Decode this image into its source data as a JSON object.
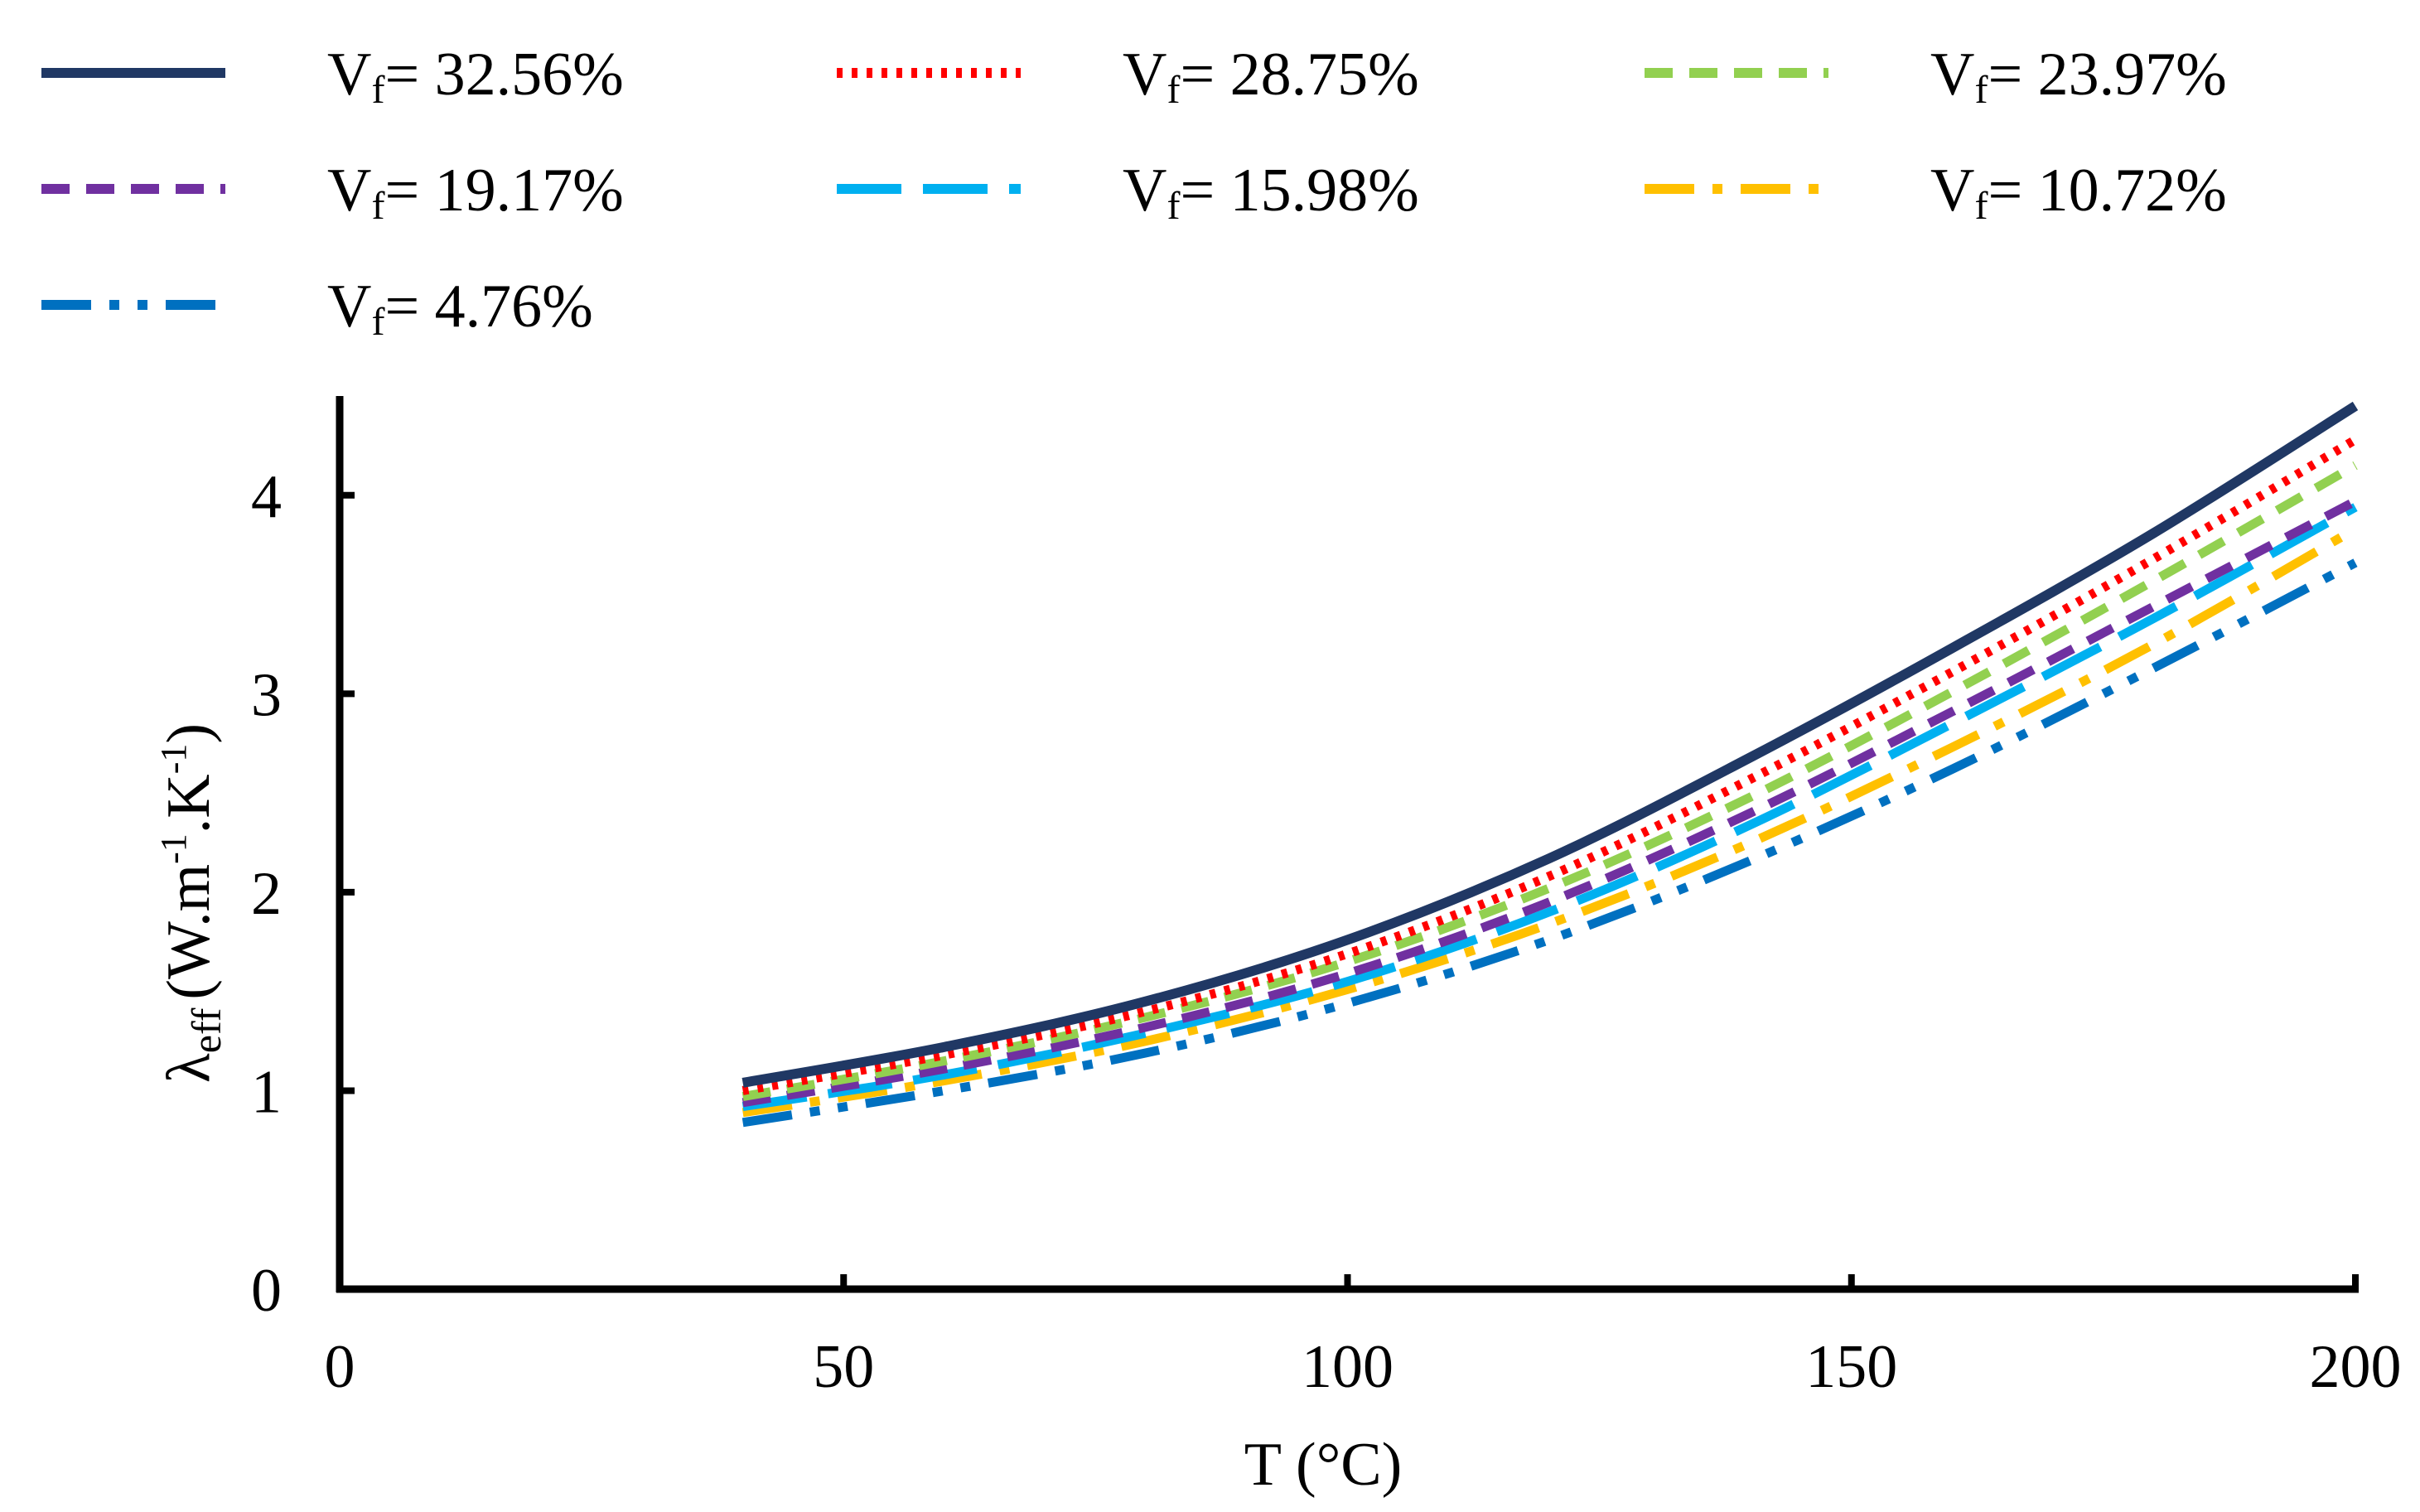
{
  "chart_data": {
    "type": "line",
    "title": "",
    "xlabel": "T (°C)",
    "ylabel": {
      "symbol": "λ",
      "subscript": "eff",
      "units_parts": [
        "(W.m",
        "-1",
        ".K",
        "-1",
        ")"
      ]
    },
    "xlim": [
      0,
      200
    ],
    "ylim": [
      0,
      4.5
    ],
    "xticks": [
      0,
      50,
      100,
      150,
      200
    ],
    "yticks": [
      0,
      1,
      2,
      3,
      4
    ],
    "grid": false,
    "legend_position": "top",
    "x": [
      40,
      60,
      80,
      100,
      120,
      140,
      160,
      180,
      200
    ],
    "series": [
      {
        "id": "s1",
        "prefix": "V",
        "sub": "f",
        "value_label": "= 32.56%",
        "color": "#203864",
        "style": "solid",
        "values": [
          1.04,
          1.22,
          1.45,
          1.76,
          2.17,
          2.68,
          3.23,
          3.81,
          4.45
        ]
      },
      {
        "id": "s2",
        "prefix": "V",
        "sub": "f",
        "value_label": "= 28.75%",
        "color": "#ff0000",
        "style": "dotted",
        "values": [
          1.0,
          1.18,
          1.4,
          1.69,
          2.08,
          2.57,
          3.11,
          3.68,
          4.28
        ]
      },
      {
        "id": "s3",
        "prefix": "V",
        "sub": "f",
        "value_label": "= 23.97%",
        "color": "#92d050",
        "style": "dashed",
        "values": [
          0.97,
          1.15,
          1.37,
          1.65,
          2.02,
          2.48,
          3.01,
          3.57,
          4.15
        ]
      },
      {
        "id": "s4",
        "prefix": "V",
        "sub": "f",
        "value_label": "= 19.17%",
        "color": "#7030a0",
        "style": "dashed",
        "values": [
          0.94,
          1.11,
          1.32,
          1.59,
          1.95,
          2.4,
          2.91,
          3.44,
          3.97
        ]
      },
      {
        "id": "s5",
        "prefix": "V",
        "sub": "f",
        "value_label": "= 15.98%",
        "color": "#00b0f0",
        "style": "longdash",
        "values": [
          0.92,
          1.08,
          1.29,
          1.55,
          1.9,
          2.34,
          2.85,
          3.38,
          3.94
        ]
      },
      {
        "id": "s6",
        "prefix": "V",
        "sub": "f",
        "value_label": "= 10.72%",
        "color": "#ffc000",
        "style": "dashdot",
        "values": [
          0.89,
          1.05,
          1.25,
          1.51,
          1.84,
          2.25,
          2.73,
          3.25,
          3.83
        ]
      },
      {
        "id": "s7",
        "prefix": "V",
        "sub": "f",
        "value_label": "= 4.76%",
        "color": "#0070c0",
        "style": "dashdotdot",
        "values": [
          0.84,
          1.0,
          1.19,
          1.44,
          1.76,
          2.16,
          2.62,
          3.13,
          3.66
        ]
      }
    ]
  }
}
